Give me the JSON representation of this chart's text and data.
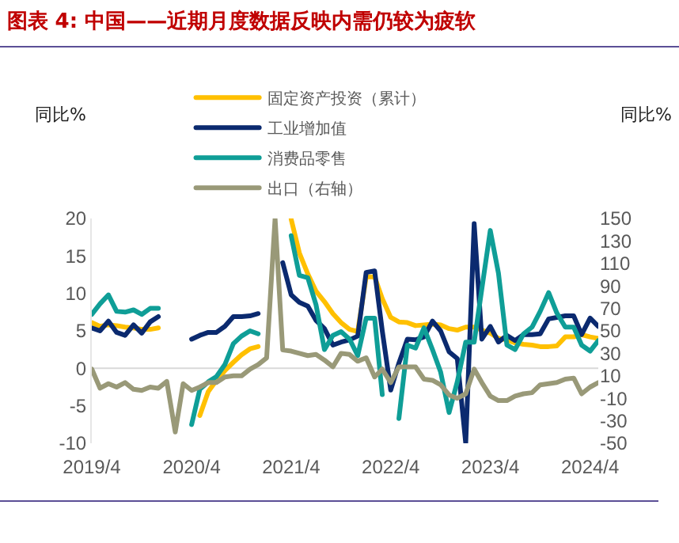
{
  "chart_data": {
    "type": "line",
    "title": "图表 4: 中国——近期月度数据反映内需仍较为疲软",
    "ylabel": "同比%",
    "y2label": "同比%",
    "x": [
      "2019-04",
      "2019-05",
      "2019-06",
      "2019-07",
      "2019-08",
      "2019-09",
      "2019-10",
      "2019-11",
      "2019-12",
      "2020-01",
      "2020-02",
      "2020-03",
      "2020-04",
      "2020-05",
      "2020-06",
      "2020-07",
      "2020-08",
      "2020-09",
      "2020-10",
      "2020-11",
      "2020-12",
      "2021-01",
      "2021-02",
      "2021-03",
      "2021-04",
      "2021-05",
      "2021-06",
      "2021-07",
      "2021-08",
      "2021-09",
      "2021-10",
      "2021-11",
      "2021-12",
      "2022-01",
      "2022-02",
      "2022-03",
      "2022-04",
      "2022-05",
      "2022-06",
      "2022-07",
      "2022-08",
      "2022-09",
      "2022-10",
      "2022-11",
      "2022-12",
      "2023-01",
      "2023-02",
      "2023-03",
      "2023-04",
      "2023-05",
      "2023-06",
      "2023-07",
      "2023-08",
      "2023-09",
      "2023-10",
      "2023-11",
      "2023-12",
      "2024-01",
      "2024-02",
      "2024-03",
      "2024-04",
      "2024-05"
    ],
    "series": [
      {
        "name": "固定资产投资（累计）",
        "color": "#ffc000",
        "values": [
          6.1,
          5.6,
          5.8,
          5.7,
          5.5,
          5.4,
          5.2,
          5.2,
          5.4,
          null,
          null,
          null,
          null,
          -6.3,
          -3.1,
          -1.6,
          -0.3,
          0.8,
          1.8,
          2.6,
          2.9,
          null,
          null,
          null,
          19.9,
          15.4,
          12.6,
          10.3,
          8.9,
          7.3,
          6.1,
          5.2,
          4.9,
          12.2,
          12.2,
          9.3,
          6.8,
          6.2,
          6.1,
          5.7,
          5.8,
          5.9,
          5.8,
          5.3,
          5.1,
          5.5,
          5.5,
          5.1,
          4.7,
          4.0,
          3.8,
          3.4,
          3.2,
          3.1,
          2.9,
          2.9,
          3.0,
          4.2,
          4.2,
          4.5,
          4.2,
          4.0
        ]
      },
      {
        "name": "工业增加值",
        "color": "#0b2a6f",
        "values": [
          5.4,
          5.0,
          6.3,
          4.8,
          4.4,
          5.8,
          4.7,
          6.2,
          6.9,
          null,
          null,
          null,
          3.9,
          4.4,
          4.8,
          4.8,
          5.6,
          6.9,
          6.9,
          7.0,
          7.3,
          null,
          null,
          14.1,
          9.8,
          8.8,
          8.3,
          6.4,
          5.3,
          3.1,
          3.5,
          3.8,
          4.3,
          12.8,
          13.0,
          5.0,
          -2.9,
          0.7,
          3.9,
          3.8,
          4.2,
          6.3,
          5.0,
          2.2,
          1.3,
          -10,
          19.3,
          3.9,
          5.6,
          3.5,
          4.4,
          3.7,
          4.5,
          4.5,
          4.6,
          6.6,
          6.8,
          7.0,
          7.0,
          4.5,
          6.7,
          5.6
        ]
      },
      {
        "name": "消费品零售",
        "color": "#0f9e97",
        "values": [
          7.2,
          8.6,
          9.8,
          7.6,
          7.5,
          7.8,
          7.2,
          8.0,
          8.0,
          null,
          null,
          null,
          -7.5,
          -2.8,
          -1.8,
          -1.1,
          0.5,
          3.3,
          4.3,
          5.0,
          4.6,
          null,
          null,
          null,
          17.7,
          12.4,
          12.1,
          8.5,
          2.5,
          4.4,
          4.9,
          3.9,
          1.7,
          6.7,
          6.7,
          -3.5,
          null,
          -6.7,
          3.1,
          2.7,
          5.4,
          2.5,
          -0.5,
          -5.9,
          -1.8,
          3.5,
          3.5,
          10.6,
          18.4,
          12.7,
          3.1,
          2.5,
          4.6,
          5.5,
          7.6,
          10.1,
          7.4,
          5.5,
          5.5,
          3.1,
          2.3,
          3.7
        ]
      },
      {
        "name": "出口（右轴）",
        "color": "#999978",
        "axis": "y2",
        "values": [
          16,
          -1,
          3,
          0,
          4,
          -2,
          -3,
          0,
          -1,
          5,
          -40,
          3,
          -3,
          0,
          4,
          4,
          9,
          10,
          10,
          16,
          20,
          26,
          150,
          33,
          32,
          30,
          28,
          29,
          24,
          18,
          30,
          29,
          23,
          26,
          9,
          16,
          4,
          18,
          18,
          18,
          7,
          6,
          2,
          -7,
          -10,
          -6,
          16,
          4,
          -8,
          -12,
          -12,
          -8,
          -6,
          -5,
          2,
          3,
          4,
          7,
          8,
          -6,
          0,
          4
        ]
      }
    ],
    "xlim": [
      "2019-04",
      "2024-05"
    ],
    "xticks": [
      {
        "value": "2019-04",
        "label": "2019/4"
      },
      {
        "value": "2020-04",
        "label": "2020/4"
      },
      {
        "value": "2021-04",
        "label": "2021/4"
      },
      {
        "value": "2022-04",
        "label": "2022/4"
      },
      {
        "value": "2023-04",
        "label": "2023/4"
      },
      {
        "value": "2024-04",
        "label": "2024/4"
      }
    ],
    "ylim": [
      -10,
      20
    ],
    "yticks": [
      -10,
      -5,
      0,
      5,
      10,
      15,
      20
    ],
    "y2lim": [
      -50,
      150
    ],
    "y2ticks": [
      -50,
      -30,
      -10,
      10,
      30,
      50,
      70,
      90,
      110,
      130,
      150
    ],
    "ref_lines": [
      {
        "axis": "y",
        "value": 0,
        "color": "#d9d9d9"
      }
    ],
    "grid": false,
    "legend": "top",
    "marker": "none",
    "line_style": "solid"
  }
}
